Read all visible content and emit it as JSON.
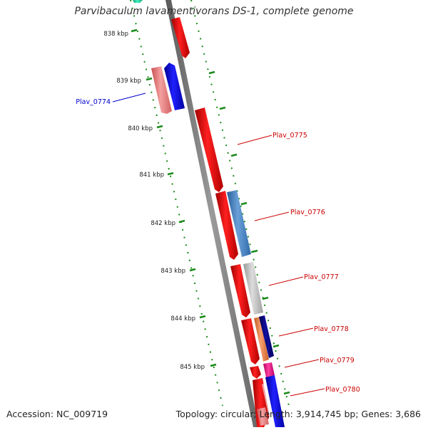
{
  "title": "Parvibaculum lavamentivorans DS-1, complete genome",
  "footer": {
    "accession": "Accession: NC_009719",
    "summary": "Topology: circular; Length: 3,914,745 bp; Genes: 3,686"
  },
  "ticks": [
    "838 kbp",
    "839 kbp",
    "840 kbp",
    "841 kbp",
    "842 kbp",
    "843 kbp",
    "844 kbp",
    "845 kbp"
  ],
  "genes": [
    {
      "name": "Plav_0774",
      "color": "#0000cc"
    },
    {
      "name": "Plav_0775",
      "color": "#cc0000"
    },
    {
      "name": "Plav_0776",
      "color": "#cc0000"
    },
    {
      "name": "Plav_0777",
      "color": "#cc0000"
    },
    {
      "name": "Plav_0778",
      "color": "#cc0000"
    },
    {
      "name": "Plav_0779",
      "color": "#cc0000"
    },
    {
      "name": "Plav_0780",
      "color": "#cc0000"
    }
  ],
  "colors": {
    "backbone": "#808080",
    "tick_dots": "#1a8a1a",
    "red": "#ff0000",
    "pink": "#f08080",
    "blue": "#0000ff",
    "steel_blue": "#4a86c0",
    "gray": "#bbbbbb",
    "orange": "#f08040",
    "navy": "#000080",
    "magenta": "#ee1188",
    "teal": "#20d0a0"
  }
}
